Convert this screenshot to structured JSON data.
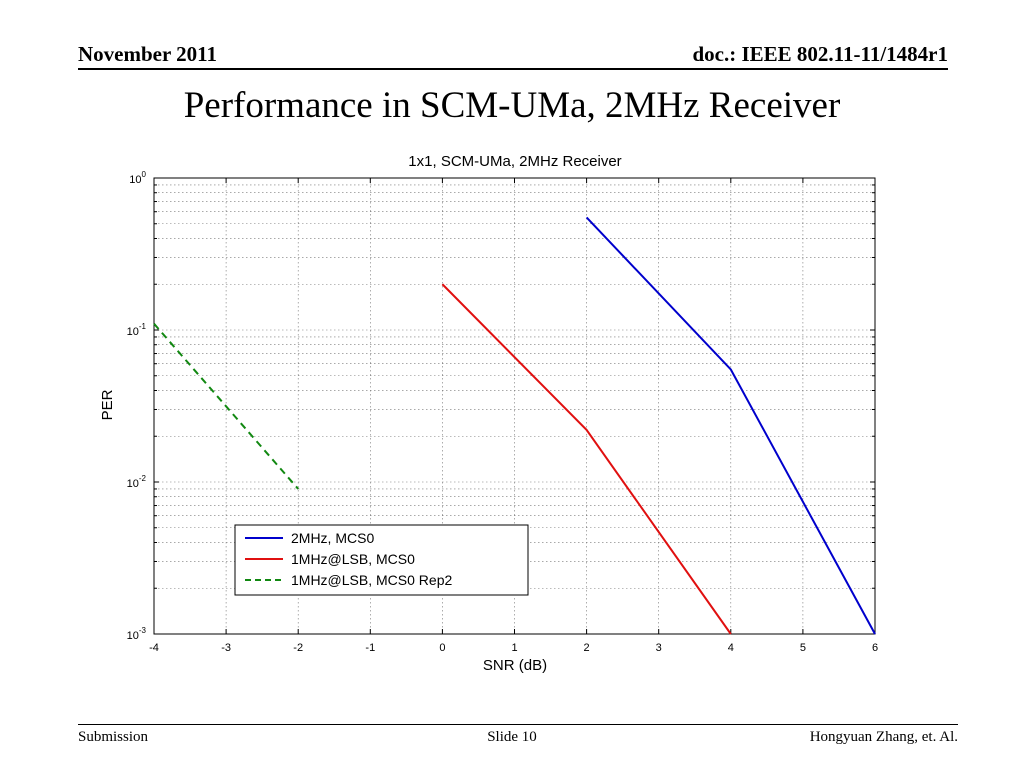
{
  "header": {
    "date": "November 2011",
    "doc": "doc.: IEEE 802.11-11/1484r1"
  },
  "slide": {
    "title": "Performance in SCM-UMa, 2MHz Receiver"
  },
  "footer": {
    "left": "Submission",
    "center": "Slide 10",
    "right": "Hongyuan Zhang, et. Al."
  },
  "colors": {
    "blue": "#0000cc",
    "red": "#e01010",
    "green": "#118811"
  },
  "chart_data": {
    "type": "line",
    "title": "1x1, SCM-UMa, 2MHz Receiver",
    "xlabel": "SNR (dB)",
    "ylabel": "PER",
    "xlim": [
      -4,
      6
    ],
    "ylim": [
      0.001,
      1
    ],
    "yscale": "log",
    "grid": true,
    "legend_position": "bottom-left",
    "xticks": [
      -4,
      -3,
      -2,
      -1,
      0,
      1,
      2,
      3,
      4,
      5,
      6
    ],
    "yticks": [
      {
        "base": "10",
        "exp": "0",
        "value": 1
      },
      {
        "base": "10",
        "exp": "-1",
        "value": 0.1
      },
      {
        "base": "10",
        "exp": "-2",
        "value": 0.01
      },
      {
        "base": "10",
        "exp": "-3",
        "value": 0.001
      }
    ],
    "series": [
      {
        "name": "2MHz, MCS0",
        "color": "#0000cc",
        "dash": false,
        "x": [
          2,
          4,
          6
        ],
        "y": [
          0.55,
          0.055,
          0.001
        ]
      },
      {
        "name": "1MHz@LSB, MCS0",
        "color": "#e01010",
        "dash": false,
        "x": [
          0,
          2,
          4
        ],
        "y": [
          0.2,
          0.022,
          0.001
        ]
      },
      {
        "name": "1MHz@LSB, MCS0 Rep2",
        "color": "#118811",
        "dash": true,
        "x": [
          -4,
          -2
        ],
        "y": [
          0.11,
          0.009
        ]
      }
    ]
  }
}
